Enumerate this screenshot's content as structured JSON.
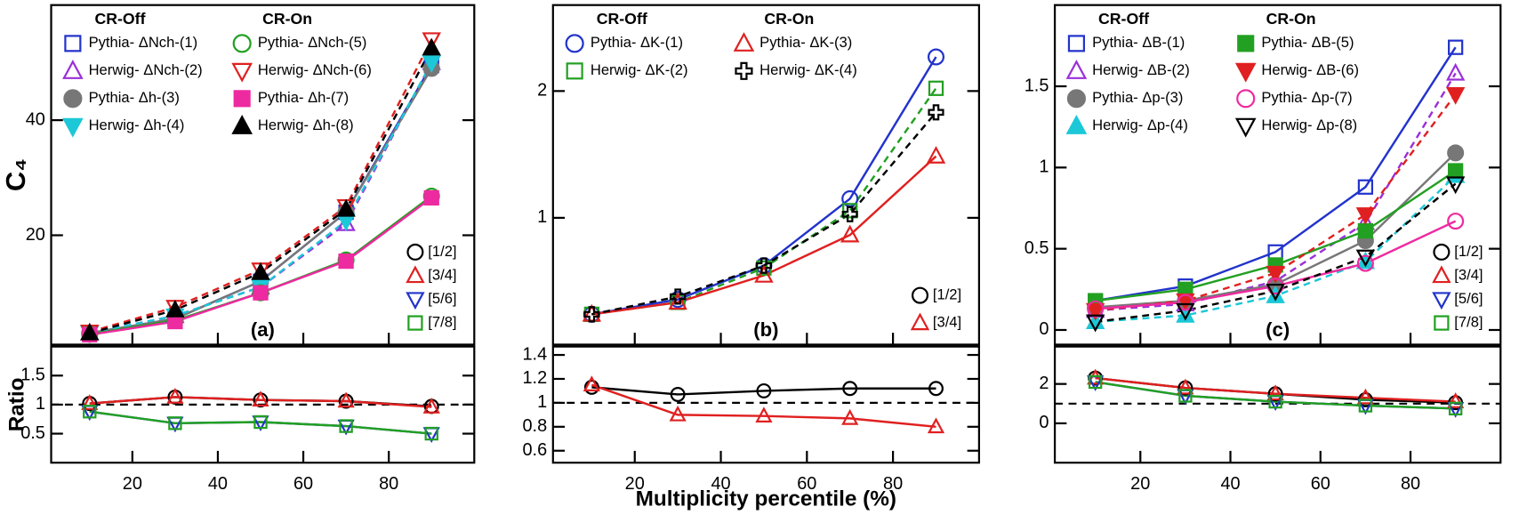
{
  "chart_data": [
    {
      "type": "line",
      "x": [
        10,
        30,
        50,
        70,
        90
      ],
      "xlim": [
        1,
        100
      ],
      "ylim": [
        1,
        60
      ],
      "yticks": [
        20,
        40
      ],
      "ylabel": "C₄",
      "panel_label": "(a)",
      "legend_titles": [
        "CR-Off",
        "CR-On"
      ],
      "series": [
        {
          "name": "Pythia- ΔNch-(1)",
          "color": "#2233cc",
          "marker": "square",
          "filled": false,
          "dashed": false,
          "values": [
            3,
            5.5,
            12,
            24,
            49.5
          ]
        },
        {
          "name": "Herwig- ΔNch-(2)",
          "color": "#9b30d9",
          "marker": "triangle",
          "filled": false,
          "dashed": true,
          "values": [
            3,
            6,
            11,
            22,
            50
          ]
        },
        {
          "name": "Pythia- Δh-(3)",
          "color": "#777777",
          "marker": "circle",
          "filled": true,
          "dashed": false,
          "values": [
            3,
            5.5,
            12,
            24,
            49
          ]
        },
        {
          "name": "Herwig- Δh-(4)",
          "color": "#1cc8d8",
          "marker": "tri_down",
          "filled": true,
          "dashed": true,
          "values": [
            3,
            6,
            11,
            22.5,
            50
          ]
        },
        {
          "name": "Pythia- ΔNch-(5)",
          "color": "#22a022",
          "marker": "circle",
          "filled": false,
          "dashed": false,
          "values": [
            2.8,
            5.2,
            10,
            15.7,
            26.8
          ]
        },
        {
          "name": "Herwig- ΔNch-(6)",
          "color": "#e02020",
          "marker": "tri_down",
          "filled": false,
          "dashed": true,
          "values": [
            3.2,
            7.5,
            14,
            25,
            54
          ]
        },
        {
          "name": "Pythia- Δh-(7)",
          "color": "#ee2aa0",
          "marker": "square",
          "filled": true,
          "dashed": false,
          "values": [
            2.7,
            5,
            10,
            15.5,
            26.5
          ]
        },
        {
          "name": "Herwig- Δh-(8)",
          "color": "#000000",
          "marker": "triangle",
          "filled": true,
          "dashed": true,
          "values": [
            3,
            7,
            13.5,
            24.5,
            52.5
          ]
        }
      ]
    },
    {
      "type": "line",
      "x": [
        10,
        30,
        50,
        70,
        90
      ],
      "xlim": [
        1,
        100
      ],
      "ylim": [
        0,
        2
      ],
      "yticks": [
        0.5,
        1,
        1.5
      ],
      "xticks": [
        20,
        40,
        60,
        80
      ],
      "ylabel": "Ratio",
      "hline": 1,
      "series": [
        {
          "name": "[1/2]",
          "color": "#000000",
          "marker": "circle",
          "filled": false,
          "dashed": false,
          "values": [
            1.02,
            1.13,
            1.08,
            1.06,
            0.97
          ]
        },
        {
          "name": "[3/4]",
          "color": "#e02020",
          "marker": "triangle",
          "filled": false,
          "dashed": false,
          "values": [
            1.02,
            1.13,
            1.08,
            1.06,
            0.96
          ]
        },
        {
          "name": "[5/6]",
          "color": "#2233cc",
          "marker": "tri_down",
          "filled": false,
          "dashed": false,
          "values": [
            0.88,
            0.68,
            0.7,
            0.63,
            0.5
          ]
        },
        {
          "name": "[7/8]",
          "color": "#22a022",
          "marker": "square",
          "filled": false,
          "dashed": false,
          "values": [
            0.88,
            0.68,
            0.7,
            0.63,
            0.5
          ]
        }
      ]
    },
    {
      "type": "line",
      "x": [
        10,
        30,
        50,
        70,
        90
      ],
      "xlim": [
        1,
        100
      ],
      "ylim": [
        0.5,
        3.2
      ],
      "log_y": true,
      "yticks": [
        1,
        2
      ],
      "panel_label": "(b)",
      "legend_titles": [
        "CR-Off",
        "CR-On"
      ],
      "series": [
        {
          "name": "Pythia- ΔK-(1)",
          "color": "#2233cc",
          "marker": "circle",
          "filled": false,
          "dashed": false,
          "values": [
            0.59,
            0.64,
            0.77,
            1.11,
            2.41
          ]
        },
        {
          "name": "Herwig- ΔK-(2)",
          "color": "#22a022",
          "marker": "square",
          "filled": false,
          "dashed": true,
          "values": [
            0.59,
            0.63,
            0.76,
            1.04,
            2.03
          ]
        },
        {
          "name": "Pythia- ΔK-(3)",
          "color": "#e02020",
          "marker": "triangle",
          "filled": false,
          "dashed": false,
          "values": [
            0.59,
            0.63,
            0.73,
            0.91,
            1.4
          ]
        },
        {
          "name": "Herwig- ΔK-(4)",
          "color": "#000000",
          "marker": "cross",
          "filled": false,
          "dashed": true,
          "values": [
            0.59,
            0.65,
            0.77,
            1.02,
            1.78
          ]
        }
      ]
    },
    {
      "type": "line",
      "x": [
        10,
        30,
        50,
        70,
        90
      ],
      "xlim": [
        1,
        100
      ],
      "ylim": [
        0.5,
        1.47
      ],
      "yticks": [
        0.6,
        0.8,
        1,
        1.2,
        1.4
      ],
      "xticks": [
        20,
        40,
        60,
        80
      ],
      "xlabel": "Multiplicity percentile (%)",
      "hline": 1,
      "series": [
        {
          "name": "[1/2]",
          "color": "#000000",
          "marker": "circle",
          "filled": false,
          "dashed": false,
          "values": [
            1.13,
            1.07,
            1.1,
            1.12,
            1.12
          ]
        },
        {
          "name": "[3/4]",
          "color": "#e02020",
          "marker": "triangle",
          "filled": false,
          "dashed": false,
          "values": [
            1.15,
            0.9,
            0.89,
            0.87,
            0.8
          ]
        }
      ]
    },
    {
      "type": "line",
      "x": [
        10,
        30,
        50,
        70,
        90
      ],
      "xlim": [
        1,
        100
      ],
      "ylim": [
        -0.09,
        2.0
      ],
      "yticks": [
        0,
        0.5,
        1,
        1.5
      ],
      "panel_label": "(c)",
      "legend_titles": [
        "CR-Off",
        "CR-On"
      ],
      "series": [
        {
          "name": "Pythia- ΔB-(1)",
          "color": "#2233cc",
          "marker": "square",
          "filled": false,
          "dashed": false,
          "values": [
            0.18,
            0.27,
            0.48,
            0.88,
            1.74
          ]
        },
        {
          "name": "Herwig- ΔB-(2)",
          "color": "#9b30d9",
          "marker": "triangle",
          "filled": false,
          "dashed": true,
          "values": [
            0.12,
            0.16,
            0.3,
            0.66,
            1.58
          ]
        },
        {
          "name": "Pythia- Δp-(3)",
          "color": "#777777",
          "marker": "circle",
          "filled": true,
          "dashed": false,
          "values": [
            0.14,
            0.18,
            0.28,
            0.55,
            1.09
          ]
        },
        {
          "name": "Herwig- Δp-(4)",
          "color": "#1cc8d8",
          "marker": "triangle",
          "filled": true,
          "dashed": true,
          "values": [
            0.05,
            0.09,
            0.21,
            0.42,
            0.95
          ]
        },
        {
          "name": "Pythia- ΔB-(5)",
          "color": "#22a022",
          "marker": "square",
          "filled": true,
          "dashed": false,
          "values": [
            0.18,
            0.25,
            0.4,
            0.61,
            0.98
          ]
        },
        {
          "name": "Herwig- ΔB-(6)",
          "color": "#e02020",
          "marker": "tri_down",
          "filled": true,
          "dashed": true,
          "values": [
            0.12,
            0.18,
            0.35,
            0.71,
            1.45
          ]
        },
        {
          "name": "Pythia- Δp-(7)",
          "color": "#ee2aa0",
          "marker": "circle",
          "filled": false,
          "dashed": false,
          "values": [
            0.13,
            0.17,
            0.27,
            0.41,
            0.67
          ]
        },
        {
          "name": "Herwig- Δp-(8)",
          "color": "#000000",
          "marker": "tri_down",
          "filled": false,
          "dashed": true,
          "values": [
            0.05,
            0.12,
            0.24,
            0.45,
            0.9
          ]
        }
      ]
    },
    {
      "type": "line",
      "x": [
        10,
        30,
        50,
        70,
        90
      ],
      "xlim": [
        1,
        100
      ],
      "ylim": [
        -2,
        3.9
      ],
      "yticks": [
        0,
        2
      ],
      "xticks": [
        20,
        40,
        60,
        80
      ],
      "hline": 1,
      "series": [
        {
          "name": "[1/2]",
          "color": "#000000",
          "marker": "circle",
          "filled": false,
          "dashed": false,
          "values": [
            2.3,
            1.8,
            1.5,
            1.2,
            1.05
          ]
        },
        {
          "name": "[3/4]",
          "color": "#e02020",
          "marker": "triangle",
          "filled": false,
          "dashed": false,
          "values": [
            2.3,
            1.8,
            1.5,
            1.3,
            1.1
          ]
        },
        {
          "name": "[5/6]",
          "color": "#2233cc",
          "marker": "tri_down",
          "filled": false,
          "dashed": false,
          "values": [
            2.1,
            1.4,
            1.1,
            0.9,
            0.75
          ]
        },
        {
          "name": "[7/8]",
          "color": "#22a022",
          "marker": "square",
          "filled": false,
          "dashed": false,
          "values": [
            2.1,
            1.4,
            1.1,
            0.9,
            0.75
          ]
        }
      ]
    }
  ]
}
